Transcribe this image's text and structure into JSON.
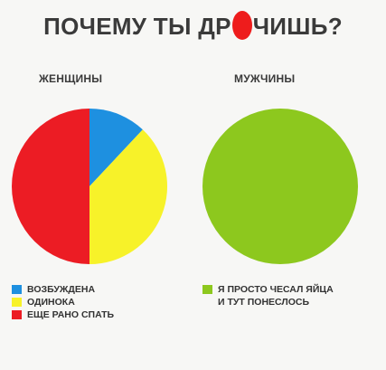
{
  "title_before": "ПОЧЕМУ ТЫ ДР",
  "title_after": "ЧИШЬ?",
  "chart_data": [
    {
      "type": "pie",
      "title": "ЖЕНЩИНЫ",
      "series": [
        {
          "name": "ВОЗБУЖДЕНА",
          "value": 12,
          "color": "#1e90e0"
        },
        {
          "name": "ОДИНОКА",
          "value": 38,
          "color": "#f7f229"
        },
        {
          "name": "ЕЩЕ РАНО СПАТЬ",
          "value": 50,
          "color": "#ec1c24"
        }
      ],
      "legend_placement": "bottom"
    },
    {
      "type": "pie",
      "title": "МУЖЧИНЫ",
      "series": [
        {
          "name": "Я ПРОСТО ЧЕСАЛ ЯЙЦА И ТУТ ПОНЕСЛОСЬ",
          "value": 100,
          "color": "#8dc81e"
        }
      ],
      "legend_placement": "bottom"
    }
  ],
  "legend_right_lines": [
    "Я ПРОСТО ЧЕСАЛ ЯЙЦА",
    "И ТУТ ПОНЕСЛОСЬ"
  ]
}
